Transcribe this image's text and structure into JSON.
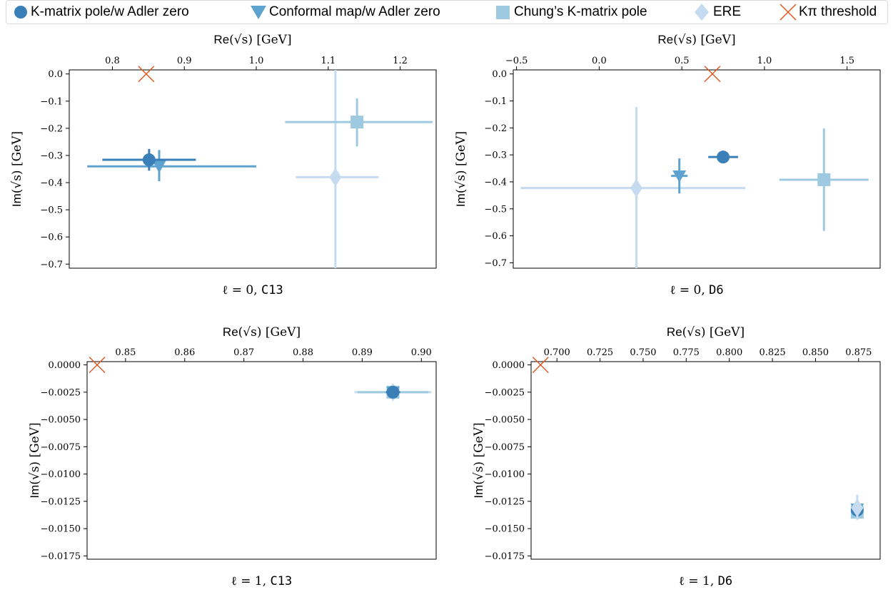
{
  "legend": [
    {
      "label": "K-matrix pole/w Adler zero",
      "symbol": "circle",
      "color": "#3a7fb8"
    },
    {
      "label": "Conformal map/w Adler zero",
      "symbol": "triangle-down",
      "color": "#5ea3d0"
    },
    {
      "label": "Chung’s K-matrix pole",
      "symbol": "square",
      "color": "#9ecae1"
    },
    {
      "label": "ERE",
      "symbol": "diamond",
      "color": "#c6dbef"
    },
    {
      "label": "Kπ threshold",
      "symbol": "x",
      "color": "#e0541c"
    }
  ],
  "chart_data": [
    {
      "type": "scatter",
      "caption_l": "ℓ = 0,",
      "caption_ens": "C13",
      "xlabel_re": "Re",
      "xlabel_unit": "[GeV]",
      "ylabel_im": "Im",
      "ylabel_unit": "[GeV]",
      "xlim": [
        0.74,
        1.25
      ],
      "ylim": [
        -0.715,
        0.015
      ],
      "xticks": [
        0.8,
        0.9,
        1.0,
        1.1,
        1.2
      ],
      "xtick_labels": [
        "0.8",
        "0.9",
        "1.0",
        "1.1",
        "1.2"
      ],
      "yticks": [
        0.0,
        -0.1,
        -0.2,
        -0.3,
        -0.4,
        -0.5,
        -0.6,
        -0.7
      ],
      "ytick_labels": [
        "0.0",
        "−0.1",
        "−0.2",
        "−0.3",
        "−0.4",
        "−0.5",
        "−0.6",
        "−0.7"
      ],
      "threshold": {
        "x": 0.847,
        "y": 0.0
      },
      "series": [
        {
          "symbol": "diamond",
          "color": "#c6dbef",
          "x": 1.11,
          "y": -0.38,
          "xerr": [
            0.055,
            0.06
          ],
          "yerr": [
            0.34,
            0.42
          ]
        },
        {
          "symbol": "square",
          "color": "#9ecae1",
          "x": 1.14,
          "y": -0.177,
          "xerr": [
            0.1,
            0.105
          ],
          "yerr": [
            0.09,
            0.087
          ]
        },
        {
          "symbol": "triangle-down",
          "color": "#5ea3d0",
          "x": 0.865,
          "y": -0.34,
          "xerr": [
            0.1,
            0.135
          ],
          "yerr": [
            0.055,
            0.06
          ]
        },
        {
          "symbol": "circle",
          "color": "#3a7fb8",
          "x": 0.851,
          "y": -0.316,
          "xerr": [
            0.065,
            0.065
          ],
          "yerr": [
            0.04,
            0.04
          ]
        }
      ]
    },
    {
      "type": "scatter",
      "caption_l": "ℓ = 0,",
      "caption_ens": "D6",
      "xlabel_re": "Re",
      "xlabel_unit": "[GeV]",
      "ylabel_im": "Im",
      "ylabel_unit": "[GeV]",
      "xlim": [
        -0.52,
        1.7
      ],
      "ylim": [
        -0.72,
        0.015
      ],
      "xticks": [
        -0.5,
        0.0,
        0.5,
        1.0,
        1.5
      ],
      "xtick_labels": [
        "−0.5",
        "0.0",
        "0.5",
        "1.0",
        "1.5"
      ],
      "yticks": [
        0.0,
        -0.1,
        -0.2,
        -0.3,
        -0.4,
        -0.5,
        -0.6,
        -0.7
      ],
      "ytick_labels": [
        "0.0",
        "−0.1",
        "−0.2",
        "−0.3",
        "−0.4",
        "−0.5",
        "−0.6",
        "−0.7"
      ],
      "threshold": {
        "x": 0.685,
        "y": 0.0
      },
      "series": [
        {
          "symbol": "diamond",
          "color": "#c6dbef",
          "x": 0.225,
          "y": -0.423,
          "xerr": [
            0.7,
            0.66
          ],
          "yerr": [
            0.37,
            0.3
          ]
        },
        {
          "symbol": "square",
          "color": "#9ecae1",
          "x": 1.36,
          "y": -0.392,
          "xerr": [
            0.27,
            0.27
          ],
          "yerr": [
            0.19,
            0.19
          ]
        },
        {
          "symbol": "triangle-down",
          "color": "#5ea3d0",
          "x": 0.485,
          "y": -0.378,
          "xerr": [
            0.05,
            0.05
          ],
          "yerr": [
            0.065,
            0.065
          ]
        },
        {
          "symbol": "circle",
          "color": "#3a7fb8",
          "x": 0.75,
          "y": -0.308,
          "xerr": [
            0.09,
            0.09
          ],
          "yerr": [
            0.02,
            0.02
          ]
        }
      ]
    },
    {
      "type": "scatter",
      "caption_l": "ℓ = 1,",
      "caption_ens": "C13",
      "xlabel_re": "Re",
      "xlabel_unit": "[GeV]",
      "ylabel_im": "Im",
      "ylabel_unit": "[GeV]",
      "xlim": [
        0.8435,
        0.9025
      ],
      "ylim": [
        -0.0178,
        0.0003
      ],
      "xticks": [
        0.85,
        0.86,
        0.87,
        0.88,
        0.89,
        0.9
      ],
      "xtick_labels": [
        "0.85",
        "0.86",
        "0.87",
        "0.88",
        "0.89",
        "0.90"
      ],
      "yticks": [
        0.0,
        -0.0025,
        -0.005,
        -0.0075,
        -0.01,
        -0.0125,
        -0.015,
        -0.0175
      ],
      "ytick_labels": [
        "0.0000",
        "−0.0025",
        "−0.0050",
        "−0.0075",
        "−0.0100",
        "−0.0125",
        "−0.0150",
        "−0.0175"
      ],
      "threshold": {
        "x": 0.8452,
        "y": 0.0
      },
      "series": [
        {
          "symbol": "diamond",
          "color": "#c6dbef",
          "x": 0.8952,
          "y": -0.0025,
          "xerr": [
            0.0065,
            0.0065
          ],
          "yerr": [
            0.0002,
            0.0002
          ]
        },
        {
          "symbol": "square",
          "color": "#9ecae1",
          "x": 0.8952,
          "y": -0.0025,
          "xerr": [
            0.006,
            0.006
          ],
          "yerr": [
            0.0002,
            0.0002
          ]
        },
        {
          "symbol": "triangle-down",
          "color": "#5ea3d0",
          "x": 0.8952,
          "y": -0.0025,
          "xerr": [
            0.0012,
            0.0012
          ],
          "yerr": [
            0.0001,
            0.0001
          ]
        },
        {
          "symbol": "circle",
          "color": "#3a7fb8",
          "x": 0.8952,
          "y": -0.0025,
          "xerr": [
            0.0012,
            0.0012
          ],
          "yerr": [
            0.0001,
            0.0001
          ]
        }
      ]
    },
    {
      "type": "scatter",
      "caption_l": "ℓ = 1,",
      "caption_ens": "D6",
      "xlabel_re": "Re",
      "xlabel_unit": "[GeV]",
      "ylabel_im": "Im",
      "ylabel_unit": "[GeV]",
      "xlim": [
        0.685,
        0.8875
      ],
      "ylim": [
        -0.0178,
        0.0003
      ],
      "xticks": [
        0.7,
        0.725,
        0.75,
        0.775,
        0.8,
        0.825,
        0.85,
        0.875
      ],
      "xtick_labels": [
        "0.700",
        "0.725",
        "0.750",
        "0.775",
        "0.800",
        "0.825",
        "0.850",
        "0.875"
      ],
      "yticks": [
        0.0,
        -0.0025,
        -0.005,
        -0.0075,
        -0.01,
        -0.0125,
        -0.015,
        -0.0175
      ],
      "ytick_labels": [
        "0.0000",
        "−0.0025",
        "−0.0050",
        "−0.0075",
        "−0.0100",
        "−0.0125",
        "−0.0150",
        "−0.0175"
      ],
      "threshold": {
        "x": 0.6905,
        "y": 0.0
      },
      "series": [
        {
          "symbol": "square",
          "color": "#9ecae1",
          "x": 0.8742,
          "y": -0.0135,
          "xerr": [
            0.0035,
            0.0035
          ],
          "yerr": [
            0.0005,
            0.0005
          ]
        },
        {
          "symbol": "triangle-down",
          "color": "#5ea3d0",
          "x": 0.8742,
          "y": -0.0132,
          "xerr": [
            0.003,
            0.003
          ],
          "yerr": [
            0.0008,
            0.0008
          ]
        },
        {
          "symbol": "circle",
          "color": "#3a7fb8",
          "x": 0.8742,
          "y": -0.0133,
          "xerr": [
            0.0035,
            0.0035
          ],
          "yerr": [
            0.0003,
            0.0003
          ]
        },
        {
          "symbol": "diamond",
          "color": "#c6dbef",
          "x": 0.8742,
          "y": -0.0131,
          "xerr": [
            0.003,
            0.003
          ],
          "yerr": [
            0.0011,
            0.0012
          ]
        }
      ]
    }
  ]
}
